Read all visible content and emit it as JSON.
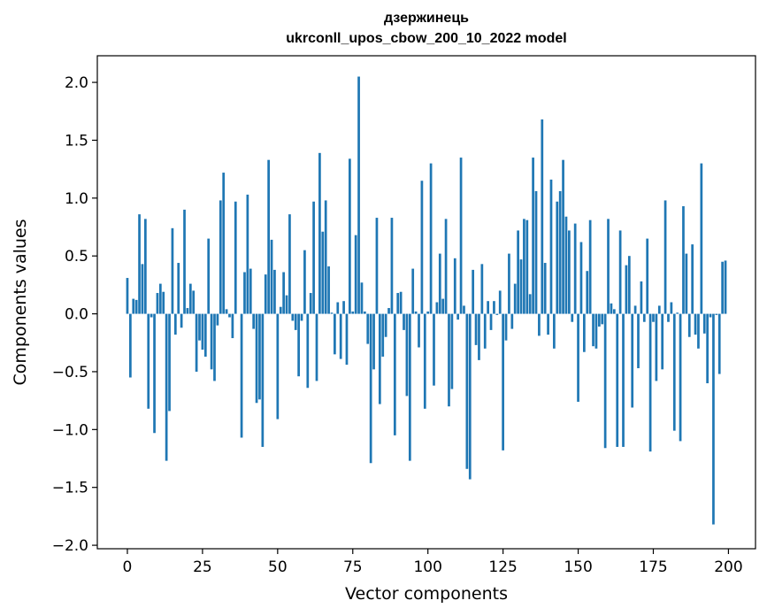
{
  "chart_data": {
    "type": "bar",
    "title_line1": "дзержинець",
    "title_line2": "ukrconll_upos_cbow_200_10_2022 model",
    "xlabel": "Vector components",
    "ylabel": "Components values",
    "xlim": [
      -10,
      209
    ],
    "ylim": [
      -2.03,
      2.23
    ],
    "xticks": [
      0,
      25,
      50,
      75,
      100,
      125,
      150,
      175,
      200
    ],
    "xtick_labels": [
      "0",
      "25",
      "50",
      "75",
      "100",
      "125",
      "150",
      "175",
      "200"
    ],
    "yticks": [
      -2.0,
      -1.5,
      -1.0,
      -0.5,
      0.0,
      0.5,
      1.0,
      1.5,
      2.0
    ],
    "ytick_labels": [
      "−2.0",
      "−1.5",
      "−1.0",
      "−0.5",
      "0.0",
      "0.5",
      "1.0",
      "1.5",
      "2.0"
    ],
    "bar_color": "#1f77b4",
    "values": [
      0.31,
      -0.55,
      0.13,
      0.12,
      0.86,
      0.43,
      0.82,
      -0.82,
      -0.03,
      -1.03,
      0.18,
      0.26,
      0.19,
      -1.27,
      -0.84,
      0.74,
      -0.18,
      0.44,
      -0.12,
      0.9,
      0.05,
      0.26,
      0.2,
      -0.5,
      -0.23,
      -0.31,
      -0.37,
      0.65,
      -0.48,
      -0.58,
      -0.1,
      0.98,
      1.22,
      0.04,
      -0.03,
      -0.21,
      0.97,
      0.0,
      -1.07,
      0.36,
      1.03,
      0.39,
      -0.13,
      -0.77,
      -0.74,
      -1.15,
      0.34,
      1.33,
      0.64,
      0.38,
      -0.91,
      0.06,
      0.36,
      0.16,
      0.86,
      -0.06,
      -0.14,
      -0.54,
      -0.06,
      0.55,
      -0.64,
      0.18,
      0.97,
      -0.58,
      1.39,
      0.71,
      0.98,
      0.41,
      0.01,
      -0.35,
      0.1,
      -0.39,
      0.11,
      -0.44,
      1.34,
      0.02,
      0.68,
      2.05,
      0.27,
      0.02,
      -0.26,
      -1.29,
      -0.48,
      0.83,
      -0.78,
      -0.37,
      -0.2,
      0.05,
      0.83,
      -1.05,
      0.18,
      0.19,
      -0.14,
      -0.71,
      -1.27,
      0.39,
      0.02,
      -0.29,
      1.15,
      -0.82,
      0.02,
      1.3,
      -0.62,
      0.1,
      0.52,
      0.13,
      0.82,
      -0.8,
      -0.65,
      0.48,
      -0.05,
      1.35,
      0.07,
      -1.34,
      -1.43,
      0.38,
      -0.27,
      -0.4,
      0.43,
      -0.3,
      0.11,
      -0.14,
      0.11,
      -0.01,
      0.2,
      -1.18,
      -0.23,
      0.52,
      -0.13,
      0.26,
      0.72,
      0.47,
      0.82,
      0.81,
      0.17,
      1.35,
      1.06,
      -0.19,
      1.68,
      0.44,
      -0.18,
      1.16,
      -0.3,
      0.97,
      1.06,
      1.33,
      0.84,
      0.72,
      -0.07,
      0.78,
      -0.76,
      0.62,
      -0.33,
      0.37,
      0.81,
      -0.28,
      -0.3,
      -0.11,
      -0.09,
      -1.16,
      0.82,
      0.09,
      0.04,
      -1.15,
      0.72,
      -1.15,
      0.42,
      0.5,
      -0.81,
      0.07,
      -0.47,
      0.28,
      -0.07,
      0.65,
      -1.19,
      -0.07,
      -0.58,
      0.07,
      -0.48,
      0.98,
      -0.07,
      0.1,
      -1.01,
      0.01,
      -1.1,
      0.93,
      0.52,
      -0.2,
      0.6,
      -0.18,
      -0.3,
      1.3,
      -0.17,
      -0.6,
      -0.03,
      -1.82,
      -0.01,
      -0.52,
      0.45,
      0.46
    ]
  }
}
